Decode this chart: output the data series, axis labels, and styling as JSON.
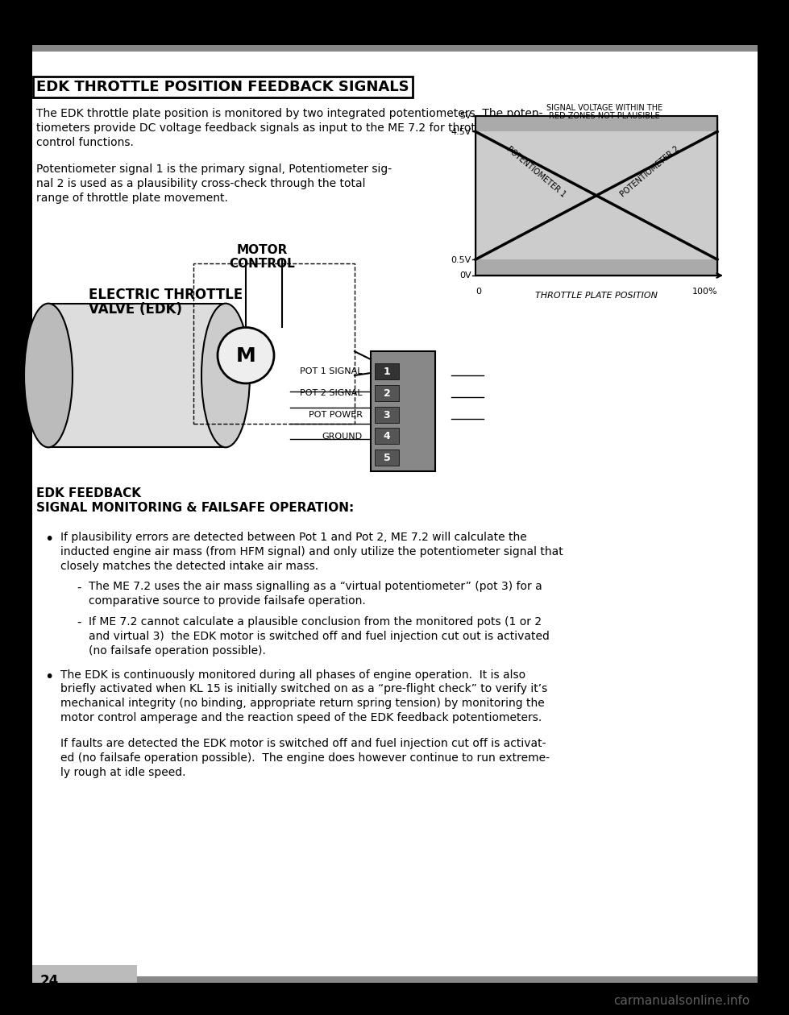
{
  "title": "EDK THROTTLE POSITION FEEDBACK SIGNALS",
  "page_number": "24",
  "bg_color": "#000000",
  "content_bg": "#ffffff",
  "header_bar_color": "#555555",
  "footer_bar_color": "#555555",
  "paragraph1": "The EDK throttle plate position is monitored by two integrated potentiometers. The poten-\ntiometers provide DC voltage feedback signals as input to the ME 7.2 for throttle and idle\ncontrol functions.",
  "paragraph2": "Potentiometer signal 1 is the primary signal, Potentiometer sig-\nnal 2 is used as a plausibility cross-check through the total\nrange of throttle plate movement.",
  "graph_title": "SIGNAL VOLTAGE WITHIN THE\nRED ZONES NOT PLAUSIBLE",
  "graph_ylabel_top": "5V",
  "graph_ylabel_upper": "4.5V",
  "graph_ylabel_lower": "0.5V",
  "graph_ylabel_bottom": "0V",
  "graph_xlabel": "THROTTLE PLATE POSITION",
  "graph_x_start": "0",
  "graph_x_end": "100%",
  "graph_pot1_label": "POTENTIOMETER 1",
  "graph_pot2_label": "POTENTIOMETER 2",
  "diagram_label1": "ELECTRIC THROTTLE\nVALVE (EDK)",
  "diagram_label2": "MOTOR\nCONTROL",
  "diagram_label3": "POT 1 SIGNAL",
  "diagram_label4": "POT 2 SIGNAL",
  "diagram_label5": "POT POWER",
  "diagram_label6": "GROUND",
  "feedback_title1": "EDK FEEDBACK",
  "feedback_title2": "SIGNAL MONITORING & FAILSAFE OPERATION:",
  "bullet1": "If plausibility errors are detected between Pot 1 and Pot 2, ME 7.2 will calculate the\ninducted engine air mass (from HFM signal) and only utilize the potentiometer signal that\nclosely matches the detected intake air mass.",
  "sub_bullet1": "The ME 7.2 uses the air mass signalling as a “virtual potentiometer” (pot 3) for a\ncomparative source to provide failsafe operation.",
  "sub_bullet2": "If ME 7.2 cannot calculate a plausible conclusion from the monitored pots (1 or 2\nand virtual 3)  the EDK motor is switched off and fuel injection cut out is activated\n(no failsafe operation possible).",
  "bullet2": "The EDK is continuously monitored during all phases of engine operation.  It is also\nbriefly activated when KL 15 is initially switched on as a “pre-flight check” to verify it’s\nmechanical integrity (no binding, appropriate return spring tension) by monitoring the\nmotor control amperage and the reaction speed of the EDK feedback potentiometers.",
  "paragraph_last": "If faults are detected the EDK motor is switched off and fuel injection cut off is activat-\ned (no failsafe operation possible).  The engine does however continue to run extreme-\nly rough at idle speed.",
  "watermark": "carmanualsonline.info",
  "font_family": "DejaVu Sans"
}
